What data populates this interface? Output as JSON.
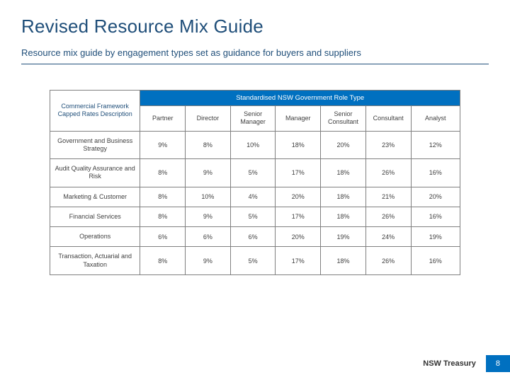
{
  "title": "Revised Resource Mix Guide",
  "subtitle": "Resource mix guide by engagement types set as guidance for buyers and suppliers",
  "colors": {
    "heading": "#1f4e79",
    "group_header_bg": "#0070c0",
    "group_header_text": "#ffffff",
    "cell_text": "#3f3f3f",
    "border": "#808080",
    "page_badge_bg": "#0070c0",
    "page_badge_text": "#ffffff"
  },
  "fonts": {
    "title_pt": 26,
    "subtitle_pt": 13,
    "table_pt": 9,
    "footer_pt": 11
  },
  "table": {
    "corner_label_line1": "Commercial Framework",
    "corner_label_line2": "Capped Rates Description",
    "group_header": "Standardised NSW Government Role Type",
    "roles": [
      "Partner",
      "Director",
      "Senior Manager",
      "Manager",
      "Senior Consultant",
      "Consultant",
      "Analyst"
    ],
    "rows": [
      {
        "label": "Government and Business Strategy",
        "values": [
          "9%",
          "8%",
          "10%",
          "18%",
          "20%",
          "23%",
          "12%"
        ]
      },
      {
        "label": "Audit Quality Assurance and Risk",
        "values": [
          "8%",
          "9%",
          "5%",
          "17%",
          "18%",
          "26%",
          "16%"
        ]
      },
      {
        "label": "Marketing & Customer",
        "values": [
          "8%",
          "10%",
          "4%",
          "20%",
          "18%",
          "21%",
          "20%"
        ]
      },
      {
        "label": "Financial Services",
        "values": [
          "8%",
          "9%",
          "5%",
          "17%",
          "18%",
          "26%",
          "16%"
        ]
      },
      {
        "label": "Operations",
        "values": [
          "6%",
          "6%",
          "6%",
          "20%",
          "19%",
          "24%",
          "19%"
        ]
      },
      {
        "label": "Transaction, Actuarial and Taxation",
        "values": [
          "8%",
          "9%",
          "5%",
          "17%",
          "18%",
          "26%",
          "16%"
        ]
      }
    ],
    "col_widths_pct": [
      22,
      11,
      11,
      11,
      11,
      11,
      11,
      12
    ]
  },
  "footer": {
    "label": "NSW Treasury",
    "page": "8"
  }
}
